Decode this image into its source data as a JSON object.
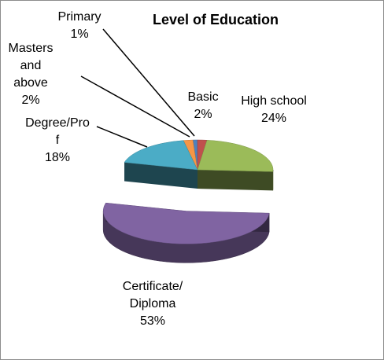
{
  "chart_data": {
    "type": "pie",
    "title": "Level of Education",
    "categories": [
      "Basic",
      "High school",
      "Certificate/Diploma",
      "Degree/Prof",
      "Masters and above",
      "Primary"
    ],
    "values": [
      2,
      24,
      53,
      18,
      2,
      1
    ],
    "value_labels": [
      "2%",
      "24%",
      "53%",
      "18%",
      "2%",
      "1%"
    ],
    "colors": [
      "#c0504d",
      "#9bbb59",
      "#8064a2",
      "#4bacc6",
      "#f79646",
      "#4f81bd"
    ],
    "exploded": [
      false,
      false,
      true,
      false,
      false,
      false
    ]
  }
}
